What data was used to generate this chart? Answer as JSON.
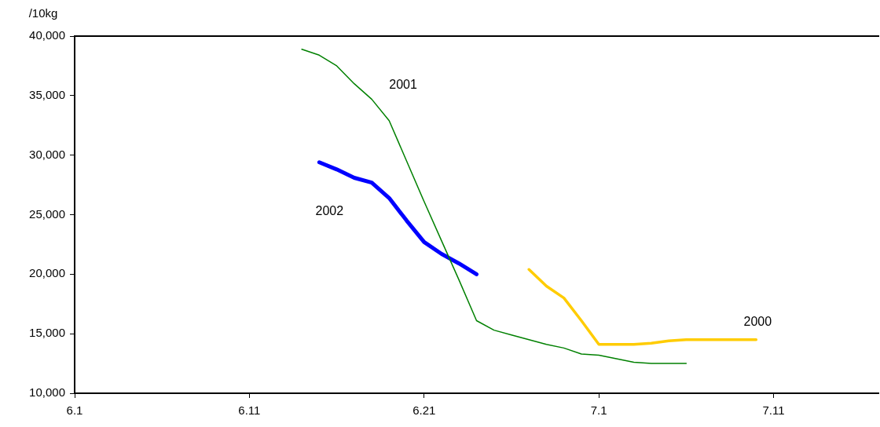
{
  "chart_data": {
    "type": "line",
    "ylabel": "/10kg",
    "xlim": [
      "--06-01",
      "--07-17"
    ],
    "xticks": [
      {
        "value": "--06-01",
        "label": "6.1"
      },
      {
        "value": "--06-11",
        "label": "6.11"
      },
      {
        "value": "--06-21",
        "label": "6.21"
      },
      {
        "value": "--07-01",
        "label": "7.1"
      },
      {
        "value": "--07-11",
        "label": "7.11"
      }
    ],
    "ylim": [
      10000,
      40000
    ],
    "yticks": [
      {
        "value": 10000,
        "label": "10,000"
      },
      {
        "value": 15000,
        "label": "15,000"
      },
      {
        "value": 20000,
        "label": "20,000"
      },
      {
        "value": 25000,
        "label": "25,000"
      },
      {
        "value": 30000,
        "label": "30,000"
      },
      {
        "value": 35000,
        "label": "35,000"
      },
      {
        "value": 40000,
        "label": "40,000"
      }
    ],
    "grid": false,
    "legend": false,
    "marker": "none",
    "line_style": "solid",
    "series": [
      {
        "name": "2001",
        "color": "#008000",
        "x": [
          "--06-14",
          "--06-15",
          "--06-16",
          "--06-17",
          "--06-18",
          "--06-19",
          "--06-20",
          "--06-21",
          "--06-22",
          "--06-23",
          "--06-24",
          "--06-25",
          "--06-26",
          "--06-27",
          "--06-28",
          "--06-29",
          "--06-30",
          "--07-01",
          "--07-02",
          "--07-03",
          "--07-04",
          "--07-05",
          "--07-06"
        ],
        "values": [
          38900,
          38400,
          37500,
          36000,
          34700,
          32900,
          29500,
          26100,
          22800,
          19500,
          16100,
          15300,
          14900,
          14500,
          14100,
          13800,
          13300,
          13200,
          12900,
          12600,
          12500,
          12500,
          12500
        ]
      },
      {
        "name": "2002",
        "color": "#0000ff",
        "x": [
          "--06-15",
          "--06-16",
          "--06-17",
          "--06-18",
          "--06-19",
          "--06-20",
          "--06-21",
          "--06-22",
          "--06-23",
          "--06-24"
        ],
        "values": [
          29400,
          28800,
          28100,
          27700,
          26400,
          24500,
          22700,
          21700,
          20900,
          20000
        ]
      },
      {
        "name": "2000",
        "color": "#ffcc00",
        "x": [
          "--06-27",
          "--06-28",
          "--06-29",
          "--06-30",
          "--07-01",
          "--07-02",
          "--07-03",
          "--07-04",
          "--07-05",
          "--07-06",
          "--07-07",
          "--07-08",
          "--07-09",
          "--07-10"
        ],
        "values": [
          20400,
          19000,
          18000,
          16100,
          14100,
          14100,
          14100,
          14200,
          14400,
          14500,
          14500,
          14500,
          14500,
          14500
        ]
      }
    ]
  }
}
